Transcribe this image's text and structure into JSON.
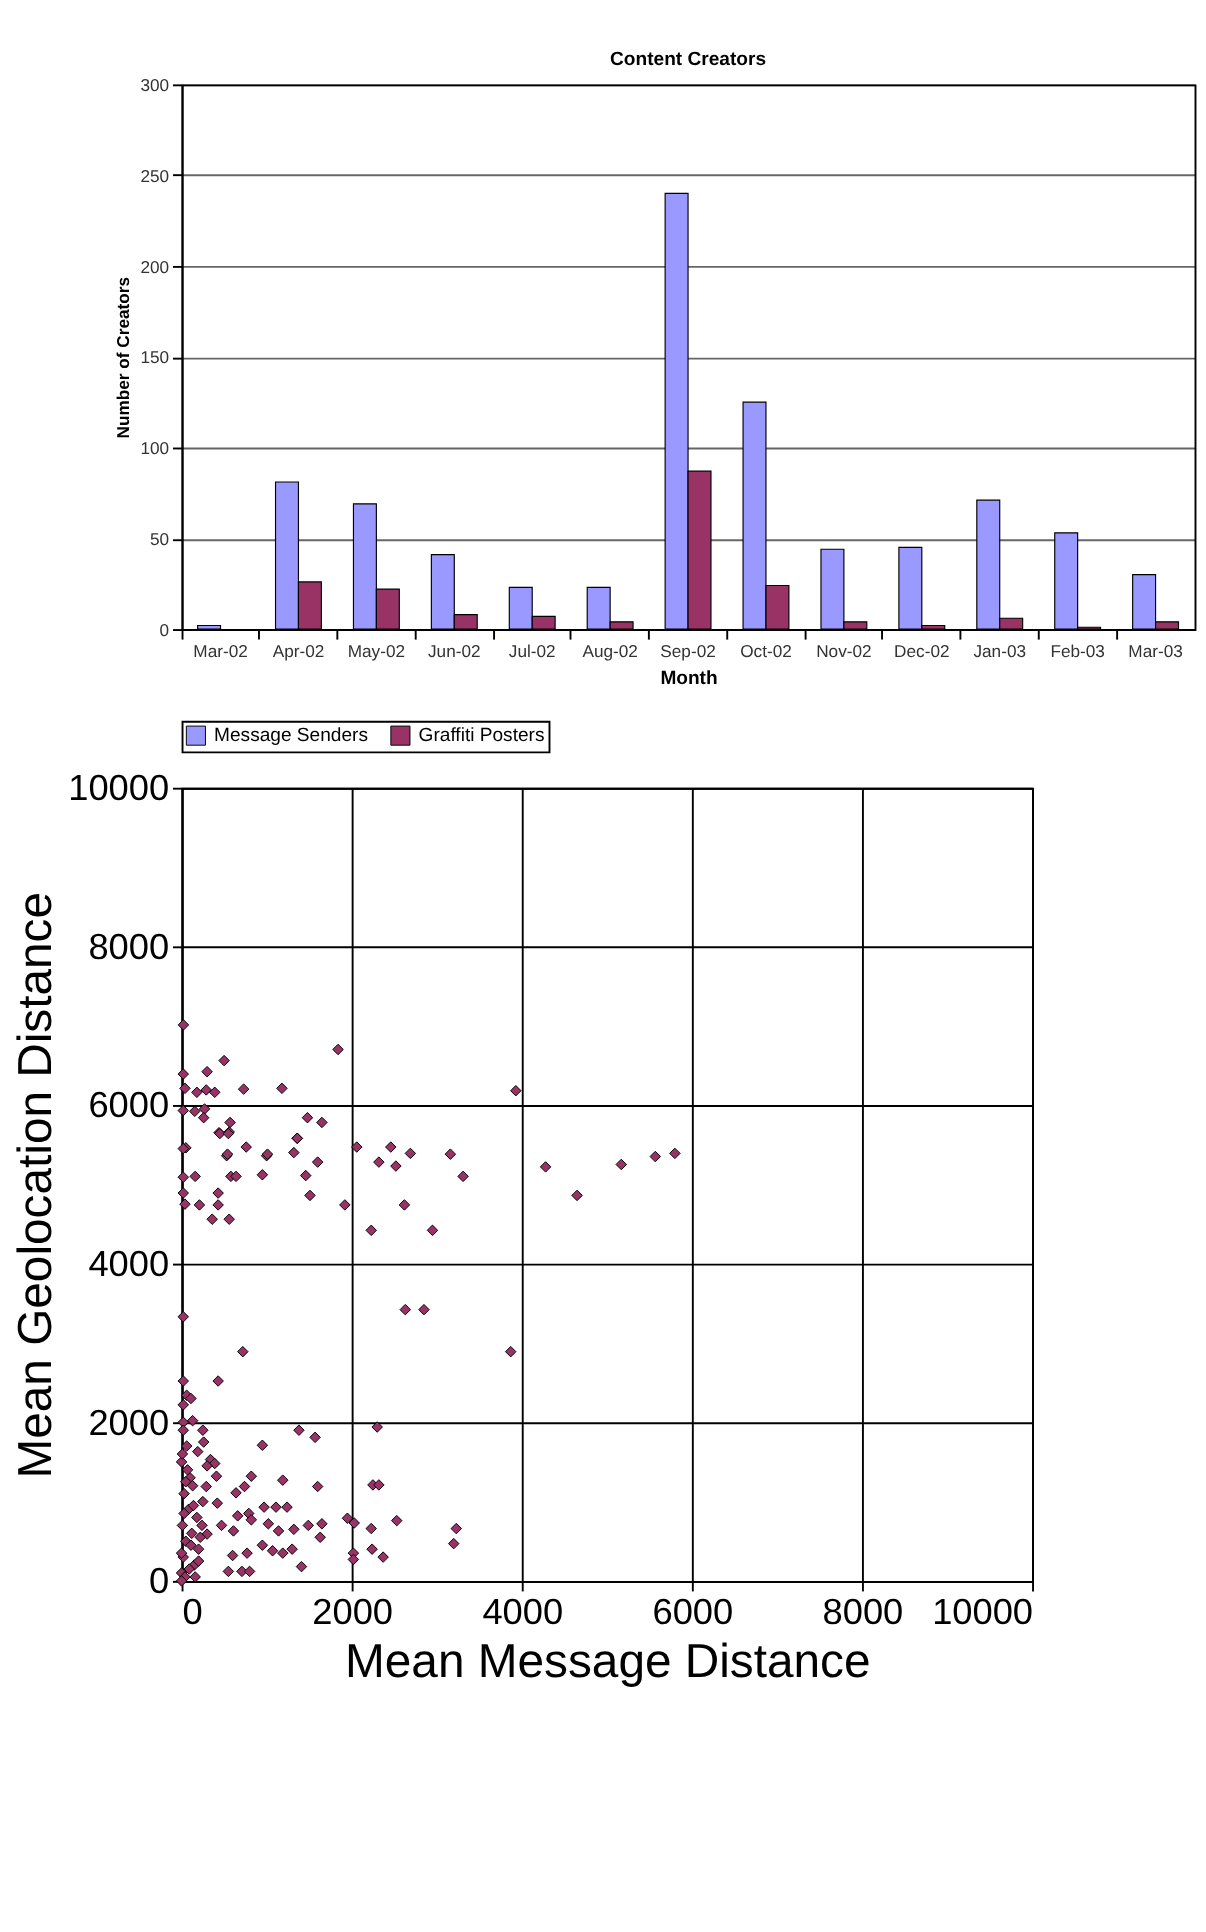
{
  "chart_data": [
    {
      "type": "bar",
      "title": "Content Creators",
      "xlabel": "Month",
      "ylabel": "Number of Creators",
      "categories": [
        "Mar-02",
        "Apr-02",
        "May-02",
        "Jun-02",
        "Jul-02",
        "Aug-02",
        "Sep-02",
        "Oct-02",
        "Nov-02",
        "Dec-02",
        "Jan-03",
        "Feb-03",
        "Mar-03"
      ],
      "series": [
        {
          "name": "Message Senders",
          "color": "#9999ff",
          "values": [
            2,
            81,
            69,
            41,
            23,
            23,
            240,
            125,
            44,
            45,
            71,
            53,
            30
          ]
        },
        {
          "name": "Graffiti Posters",
          "color": "#993366",
          "values": [
            null,
            26,
            22,
            8,
            7,
            4,
            87,
            24,
            4,
            2,
            6,
            1,
            4
          ]
        }
      ],
      "ylim": [
        0,
        300
      ],
      "yticks": [
        0,
        50,
        100,
        150,
        200,
        250,
        300
      ],
      "grid": "y",
      "legend": "bottom"
    },
    {
      "type": "scatter",
      "xlabel": "Mean Message Distance",
      "ylabel": "Mean Geolocation Distance",
      "marker": "diamond",
      "grid": true,
      "xlim": [
        0,
        10000
      ],
      "xticks": [
        0,
        2000,
        4000,
        6000,
        8000,
        10000
      ],
      "ylim": [
        0,
        10000
      ],
      "yticks": [
        0,
        2000,
        4000,
        6000,
        8000,
        10000
      ],
      "series": [
        {
          "color": "#993366",
          "x": [
            22,
            1840,
            500,
            20,
            300,
            40,
            180,
            290,
            390,
            730,
            1180,
            3930,
            20,
            155,
            270,
            260,
            570,
            440,
            560,
            1480,
            1650,
            1360,
            50,
            530,
            760,
            1000,
            1320,
            2060,
            2460,
            2690,
            3160,
            5570,
            5800,
            20,
            450,
            550,
            1360,
            540,
            1010,
            2320,
            2520,
            20,
            160,
            580,
            640,
            950,
            1460,
            1600,
            3310,
            4280,
            5170,
            4650,
            20,
            430,
            1510,
            40,
            210,
            430,
            1920,
            2620,
            360,
            560,
            2230,
            2950,
            20,
            2630,
            2850,
            720,
            3870,
            20,
            430,
            60,
            110,
            20,
            20,
            130,
            250,
            1380,
            1570,
            2300,
            950,
            260,
            190,
            340,
            390,
            300,
            410,
            820,
            290,
            1190,
            1600,
            2250,
            2320,
            740,
            640,
            420,
            970,
            1110,
            1240,
            660,
            790,
            820,
            1020,
            1490,
            1650,
            1950,
            2030,
            2230,
            2530,
            3230,
            3200,
            470,
            610,
            1140,
            1320,
            1630,
            300,
            950,
            1070,
            1190,
            1300,
            600,
            770,
            1410,
            550,
            710,
            800,
            2020,
            2020,
            2240,
            2370,
            0,
            20,
            50,
            10,
            80,
            30,
            100,
            0,
            60,
            20,
            150,
            200,
            120,
            180,
            250,
            90,
            40,
            0,
            130,
            70,
            10,
            200,
            160,
            240,
            50,
            110,
            30,
            0,
            220,
            140
          ],
          "values": [
            7010,
            6700,
            6560,
            6390,
            6420,
            6210,
            6160,
            6190,
            6160,
            6200,
            6210,
            6180,
            5930,
            5920,
            5950,
            5840,
            5780,
            5650,
            5660,
            5840,
            5780,
            5580,
            5460,
            5360,
            5470,
            5360,
            5400,
            5470,
            5470,
            5390,
            5380,
            5350,
            5390,
            5450,
            5640,
            5640,
            5580,
            5380,
            5380,
            5280,
            5230,
            5090,
            5100,
            5100,
            5100,
            5120,
            5110,
            5280,
            5100,
            5220,
            5250,
            4860,
            4890,
            4890,
            4860,
            4750,
            4740,
            4740,
            4740,
            4740,
            4560,
            4560,
            4420,
            4420,
            3330,
            3420,
            3420,
            2890,
            2890,
            2520,
            2520,
            2340,
            2300,
            2220,
            2000,
            2020,
            1900,
            1900,
            1810,
            1940,
            1710,
            1750,
            1630,
            1530,
            1480,
            1450,
            1320,
            1320,
            1190,
            1270,
            1190,
            1210,
            1210,
            1190,
            1110,
            980,
            930,
            930,
            930,
            820,
            850,
            770,
            720,
            700,
            720,
            790,
            730,
            660,
            760,
            660,
            470,
            700,
            630,
            630,
            650,
            550,
            590,
            450,
            380,
            350,
            400,
            320,
            350,
            180,
            120,
            120,
            120,
            350,
            270,
            400,
            300,
            100,
            300,
            500,
            700,
            900,
            1100,
            1300,
            1500,
            1700,
            1900,
            200,
            400,
            600,
            800,
            1000,
            150,
            50,
            0,
            1200,
            1400,
            1600,
            250,
            50,
            700,
            1250,
            450,
            850,
            350,
            550,
            950
          ]
        }
      ]
    }
  ]
}
